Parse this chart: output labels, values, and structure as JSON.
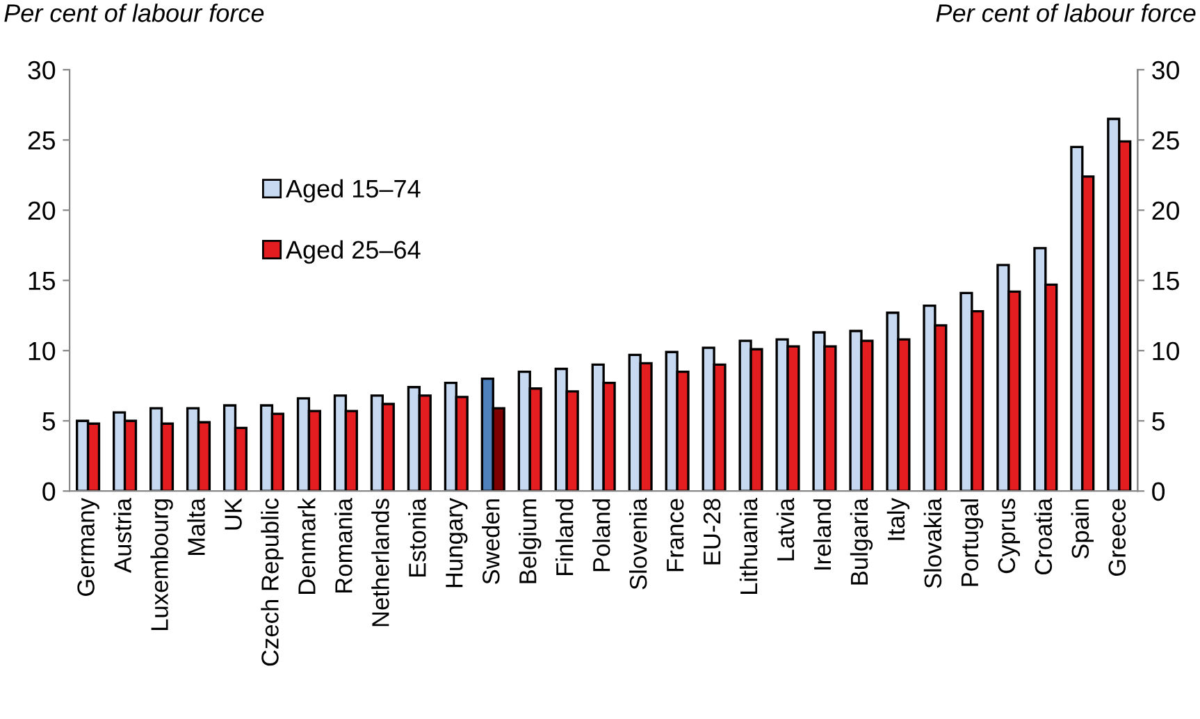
{
  "chart_data": {
    "type": "bar",
    "ylabel": "Per cent of labour force",
    "y2label": "Per cent of labour force",
    "categories": [
      "Germany",
      "Austria",
      "Luxembourg",
      "Malta",
      "UK",
      "Czech Republic",
      "Denmark",
      "Romania",
      "Netherlands",
      "Estonia",
      "Hungary",
      "Sweden",
      "Belgium",
      "Finland",
      "Poland",
      "Slovenia",
      "France",
      "EU-28",
      "Lithuania",
      "Latvia",
      "Ireland",
      "Bulgaria",
      "Italy",
      "Slovakia",
      "Portugal",
      "Cyprus",
      "Croatia",
      "Spain",
      "Greece"
    ],
    "series": [
      {
        "name": "Aged 15–74",
        "color": "#c6d9f1",
        "colors": [
          "#c6d9f1",
          "#c6d9f1",
          "#c6d9f1",
          "#c6d9f1",
          "#c6d9f1",
          "#c6d9f1",
          "#c6d9f1",
          "#c6d9f1",
          "#c6d9f1",
          "#c6d9f1",
          "#c6d9f1",
          "#4f81bd",
          "#c6d9f1",
          "#c6d9f1",
          "#c6d9f1",
          "#c6d9f1",
          "#c6d9f1",
          "#c6d9f1",
          "#c6d9f1",
          "#c6d9f1",
          "#c6d9f1",
          "#c6d9f1",
          "#c6d9f1",
          "#c6d9f1",
          "#c6d9f1",
          "#c6d9f1",
          "#c6d9f1",
          "#c6d9f1",
          "#c6d9f1"
        ],
        "values": [
          5.0,
          5.6,
          5.9,
          5.9,
          6.1,
          6.1,
          6.6,
          6.8,
          6.8,
          7.4,
          7.7,
          8.0,
          8.5,
          8.7,
          9.0,
          9.7,
          9.9,
          10.2,
          10.7,
          10.8,
          11.3,
          11.4,
          12.7,
          13.2,
          14.1,
          16.1,
          17.3,
          24.5,
          26.5
        ]
      },
      {
        "name": "Aged 25–64",
        "color": "#e41e20",
        "colors": [
          "#e41e20",
          "#e41e20",
          "#e41e20",
          "#e41e20",
          "#e41e20",
          "#e41e20",
          "#e41e20",
          "#e41e20",
          "#e41e20",
          "#e41e20",
          "#e41e20",
          "#7f0000",
          "#e41e20",
          "#e41e20",
          "#e41e20",
          "#e41e20",
          "#e41e20",
          "#e41e20",
          "#e41e20",
          "#e41e20",
          "#e41e20",
          "#e41e20",
          "#e41e20",
          "#e41e20",
          "#e41e20",
          "#e41e20",
          "#e41e20",
          "#e41e20",
          "#e41e20"
        ],
        "values": [
          4.8,
          5.0,
          4.8,
          4.9,
          4.5,
          5.5,
          5.7,
          5.7,
          6.2,
          6.8,
          6.7,
          5.9,
          7.3,
          7.1,
          7.7,
          9.1,
          8.5,
          9.0,
          10.1,
          10.3,
          10.3,
          10.7,
          10.8,
          11.8,
          12.8,
          14.2,
          14.7,
          22.4,
          24.9
        ]
      }
    ],
    "ylim": [
      0,
      30
    ],
    "yticks": [
      0,
      5,
      10,
      15,
      20,
      25,
      30
    ],
    "y2lim": [
      0,
      30
    ],
    "y2ticks": [
      0,
      5,
      10,
      15,
      20,
      25,
      30
    ],
    "grid": false,
    "legend": "left"
  }
}
